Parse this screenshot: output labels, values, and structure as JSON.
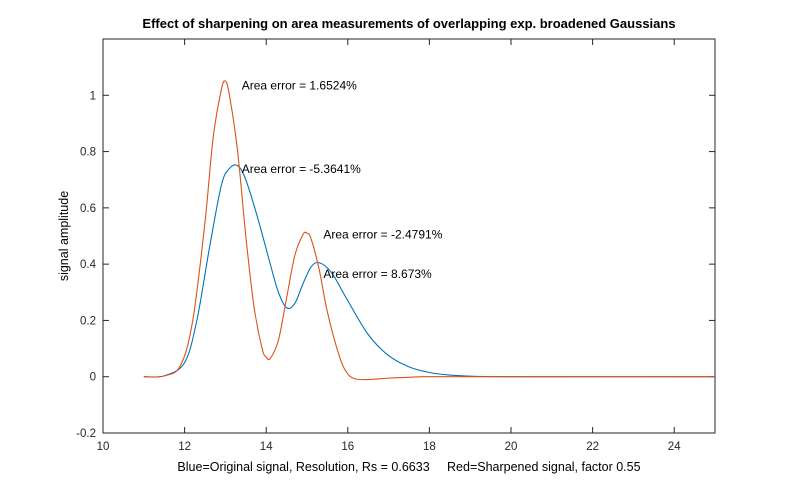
{
  "chart_data": {
    "type": "line",
    "title": "Effect of sharpening on area measurements of overlapping exp. broadened Gaussians",
    "xlabel": "Blue=Original signal, Resolution, Rs = 0.6633     Red=Sharpened signal, factor 0.55",
    "ylabel": "signal amplitude",
    "xlim": [
      10,
      25
    ],
    "ylim": [
      -0.2,
      1.2
    ],
    "xticks": [
      "10",
      "12",
      "14",
      "16",
      "18",
      "20",
      "22",
      "24"
    ],
    "yticks": [
      "-0.2",
      "0",
      "0.2",
      "0.4",
      "0.6",
      "0.8",
      "1"
    ],
    "grid": false,
    "series": [
      {
        "color": "#0072BD",
        "x": [
          11.0,
          11.5,
          12.0,
          12.3,
          12.6,
          12.9,
          13.1,
          13.3,
          13.5,
          13.8,
          14.1,
          14.3,
          14.5,
          14.7,
          14.9,
          15.1,
          15.3,
          15.6,
          16.0,
          16.5,
          17.0,
          17.5,
          18.0,
          18.5,
          19.0,
          20.0,
          25.0
        ],
        "y": [
          0.0,
          0.003,
          0.05,
          0.2,
          0.45,
          0.68,
          0.74,
          0.75,
          0.7,
          0.56,
          0.4,
          0.3,
          0.245,
          0.26,
          0.33,
          0.39,
          0.405,
          0.37,
          0.27,
          0.15,
          0.075,
          0.035,
          0.015,
          0.006,
          0.002,
          0.0,
          0.0
        ]
      },
      {
        "color": "#D95319",
        "x": [
          11.0,
          11.5,
          11.9,
          12.2,
          12.5,
          12.7,
          12.9,
          13.0,
          13.1,
          13.3,
          13.5,
          13.7,
          13.9,
          14.0,
          14.1,
          14.3,
          14.5,
          14.7,
          14.9,
          15.0,
          15.1,
          15.3,
          15.5,
          15.8,
          16.0,
          16.2,
          16.5,
          17.0,
          17.5,
          18.0,
          20.0,
          25.0
        ],
        "y": [
          0.0,
          0.003,
          0.04,
          0.2,
          0.55,
          0.85,
          1.02,
          1.05,
          1.0,
          0.8,
          0.5,
          0.25,
          0.1,
          0.07,
          0.065,
          0.13,
          0.28,
          0.43,
          0.505,
          0.51,
          0.49,
          0.38,
          0.23,
          0.07,
          0.01,
          -0.008,
          -0.01,
          -0.005,
          -0.002,
          0.0,
          0.0,
          0.0
        ]
      }
    ],
    "annotations": [
      {
        "text": "Area error = 1.6524%",
        "x": 13.4,
        "y": 1.035
      },
      {
        "text": "Area error = -5.3641%",
        "x": 13.4,
        "y": 0.738
      },
      {
        "text": "Area error = -2.4791%",
        "x": 15.4,
        "y": 0.505
      },
      {
        "text": "Area error = 8.673%",
        "x": 15.4,
        "y": 0.365
      }
    ]
  }
}
